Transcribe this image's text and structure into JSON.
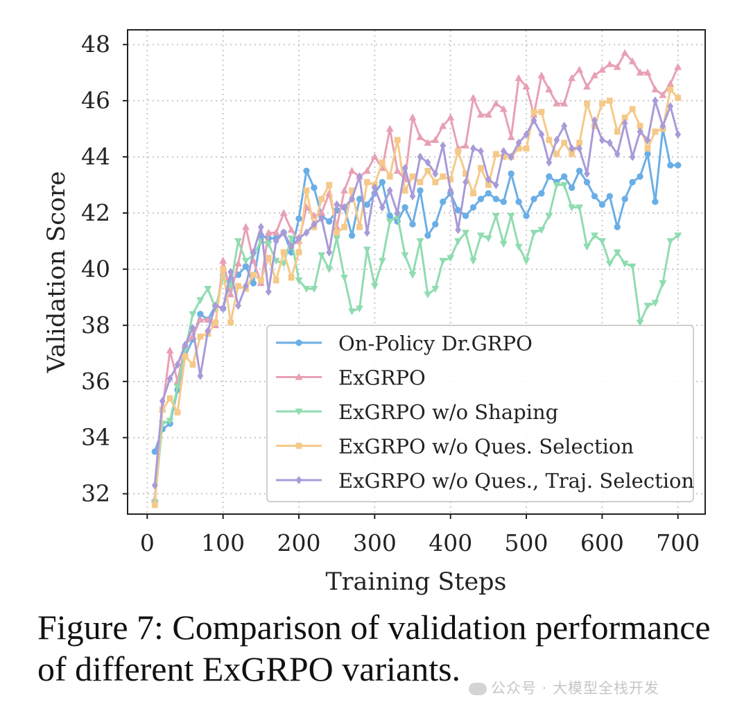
{
  "chart_data": {
    "type": "line",
    "xlabel": "Training Steps",
    "ylabel": "Validation Score",
    "xlim": [
      -25,
      735
    ],
    "ylim": [
      31.3,
      48.5
    ],
    "xticks": [
      0,
      100,
      200,
      300,
      400,
      500,
      600,
      700
    ],
    "yticks": [
      32,
      34,
      36,
      38,
      40,
      42,
      44,
      46,
      48
    ],
    "grid": true,
    "legend_position": "lower-right",
    "x": [
      10,
      20,
      30,
      40,
      50,
      60,
      70,
      80,
      90,
      100,
      110,
      120,
      130,
      140,
      150,
      160,
      170,
      180,
      190,
      200,
      210,
      220,
      230,
      240,
      250,
      260,
      270,
      280,
      290,
      300,
      310,
      320,
      330,
      340,
      350,
      360,
      370,
      380,
      390,
      400,
      410,
      420,
      430,
      440,
      450,
      460,
      470,
      480,
      490,
      500,
      510,
      520,
      530,
      540,
      550,
      560,
      570,
      580,
      590,
      600,
      610,
      620,
      630,
      640,
      650,
      660,
      670,
      680,
      690,
      700
    ],
    "series": [
      {
        "name": "On-Policy Dr.GRPO",
        "color": "#6aaee6",
        "marker": "circle",
        "values": [
          33.5,
          34.3,
          34.5,
          35.7,
          36.9,
          37.5,
          38.4,
          38.2,
          38.7,
          38.6,
          39.6,
          39.8,
          40.1,
          39.5,
          41.2,
          41.1,
          41.1,
          41.3,
          40.6,
          41.8,
          43.5,
          42.9,
          41.9,
          41.7,
          42.1,
          42.2,
          41.2,
          42.5,
          42.3,
          42.7,
          43.1,
          41.9,
          41.7,
          42.2,
          41.6,
          42.8,
          41.2,
          41.6,
          42.4,
          42.7,
          42.1,
          41.9,
          42.2,
          42.5,
          42.7,
          42.5,
          42.4,
          43.4,
          42.4,
          41.9,
          42.5,
          42.7,
          43.3,
          43.1,
          43.3,
          42.9,
          43.5,
          43.1,
          42.6,
          42.3,
          42.6,
          41.5,
          42.5,
          43.1,
          43.3,
          44.1,
          42.4,
          45.0,
          43.7,
          43.7
        ]
      },
      {
        "name": "ExGRPO",
        "color": "#e8a0b4",
        "marker": "triangle-up",
        "values": [
          31.8,
          35.0,
          37.1,
          36.0,
          37.3,
          37.6,
          38.2,
          38.2,
          38.0,
          40.3,
          39.1,
          40.2,
          41.5,
          40.3,
          39.5,
          41.3,
          41.3,
          42.0,
          41.4,
          41.0,
          42.2,
          41.9,
          42.0,
          42.7,
          41.5,
          42.8,
          43.5,
          43.3,
          43.5,
          44.0,
          43.6,
          45.0,
          43.5,
          43.2,
          45.4,
          44.7,
          44.5,
          44.6,
          45.1,
          45.4,
          44.3,
          44.4,
          46.1,
          45.5,
          45.5,
          45.9,
          45.7,
          44.7,
          46.8,
          46.5,
          45.5,
          46.9,
          46.4,
          45.9,
          45.9,
          46.8,
          47.1,
          46.5,
          46.9,
          47.1,
          47.3,
          47.2,
          47.7,
          47.4,
          47.0,
          47.0,
          46.4,
          46.2,
          46.6,
          47.2
        ]
      },
      {
        "name": "ExGRPO w/o Shaping",
        "color": "#8fdcb0",
        "marker": "triangle-down",
        "values": [
          31.7,
          34.5,
          34.6,
          35.8,
          37.1,
          38.4,
          38.9,
          39.3,
          38.6,
          39.7,
          39.4,
          41.0,
          40.3,
          40.5,
          41.0,
          40.9,
          40.3,
          40.2,
          41.1,
          39.6,
          39.3,
          39.3,
          40.5,
          40.0,
          41.1,
          39.7,
          38.5,
          38.6,
          40.7,
          39.4,
          40.3,
          41.7,
          41.9,
          40.5,
          39.8,
          41.0,
          39.1,
          39.3,
          40.3,
          40.4,
          41.0,
          41.3,
          40.3,
          41.2,
          41.1,
          41.9,
          40.9,
          41.9,
          40.8,
          40.3,
          41.3,
          41.4,
          41.9,
          43.0,
          43.0,
          42.2,
          42.2,
          40.8,
          41.2,
          41.0,
          40.2,
          40.6,
          40.2,
          40.1,
          38.1,
          38.7,
          38.8,
          39.5,
          41.0,
          41.2
        ]
      },
      {
        "name": "ExGRPO w/o Ques. Selection",
        "color": "#f5c98a",
        "marker": "square",
        "values": [
          31.6,
          35.0,
          35.4,
          34.9,
          36.9,
          36.6,
          37.6,
          37.7,
          38.1,
          40.0,
          38.1,
          39.4,
          39.3,
          39.8,
          39.6,
          40.4,
          39.6,
          40.6,
          39.7,
          40.6,
          42.8,
          41.5,
          42.5,
          43.0,
          41.3,
          41.5,
          42.8,
          41.5,
          43.1,
          43.0,
          43.8,
          43.3,
          44.6,
          42.8,
          43.3,
          43.1,
          43.5,
          43.1,
          43.3,
          43.2,
          44.2,
          43.4,
          42.7,
          43.6,
          43.0,
          44.1,
          44.0,
          44.0,
          44.3,
          44.3,
          45.6,
          45.6,
          44.6,
          44.1,
          44.5,
          44.1,
          44.5,
          45.9,
          45.1,
          45.9,
          46.0,
          44.9,
          45.4,
          45.7,
          45.1,
          44.3,
          44.9,
          45.0,
          46.4,
          46.1
        ]
      },
      {
        "name": "ExGRPO w/o Ques., Traj. Selection",
        "color": "#a99ad8",
        "marker": "diamond",
        "values": [
          32.3,
          35.3,
          36.1,
          36.6,
          37.3,
          37.9,
          36.2,
          37.8,
          38.7,
          38.6,
          39.9,
          38.7,
          39.4,
          40.6,
          41.5,
          39.2,
          41.0,
          41.3,
          40.8,
          41.1,
          41.3,
          41.6,
          41.8,
          40.6,
          42.3,
          42.2,
          42.5,
          43.3,
          41.3,
          42.9,
          42.2,
          42.8,
          42.0,
          43.6,
          42.6,
          44.0,
          43.8,
          43.4,
          44.4,
          42.8,
          41.4,
          43.1,
          44.3,
          44.2,
          43.2,
          43.0,
          44.2,
          44.0,
          44.5,
          44.8,
          45.3,
          44.8,
          43.8,
          44.6,
          45.1,
          44.3,
          44.3,
          43.4,
          45.3,
          44.6,
          44.5,
          44.1,
          45.2,
          44.0,
          44.9,
          44.6,
          46.0,
          45.1,
          45.8,
          44.8
        ]
      }
    ]
  },
  "caption": "Figure 7: Comparison of validation performance of different ExGRPO variants.",
  "watermark": "公众号 · 大模型全栈开发"
}
